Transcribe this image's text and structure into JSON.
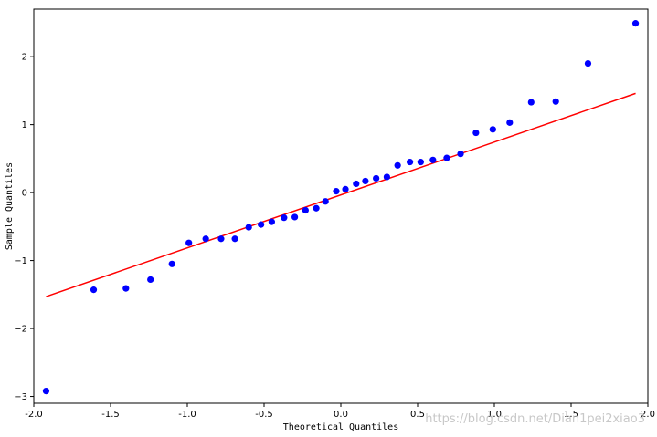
{
  "chart_data": {
    "type": "scatter",
    "title": "",
    "xlabel": "Theoretical Quantiles",
    "ylabel": "Sample Quantiles",
    "xlim": [
      -2.0,
      2.0
    ],
    "ylim": [
      -3.1,
      2.7
    ],
    "grid": false,
    "xticks": [
      -2.0,
      -1.5,
      -1.0,
      -0.5,
      0.0,
      0.5,
      1.0,
      1.5,
      2.0
    ],
    "xtick_labels": [
      "-2.0",
      "-1.5",
      "-1.0",
      "-0.5",
      "0.0",
      "0.5",
      "1.0",
      "1.5",
      "2.0"
    ],
    "yticks": [
      -3,
      -2,
      -1,
      0,
      1,
      2
    ],
    "ytick_labels": [
      "−3",
      "−2",
      "−1",
      "0",
      "1",
      "2"
    ],
    "points": {
      "color": "#0000ff",
      "x": [
        -1.92,
        -1.61,
        -1.4,
        -1.24,
        -1.1,
        -0.99,
        -0.88,
        -0.78,
        -0.69,
        -0.6,
        -0.52,
        -0.45,
        -0.37,
        -0.3,
        -0.23,
        -0.16,
        -0.1,
        -0.03,
        0.03,
        0.1,
        0.16,
        0.23,
        0.3,
        0.37,
        0.45,
        0.52,
        0.6,
        0.69,
        0.78,
        0.88,
        0.99,
        1.1,
        1.24,
        1.4,
        1.61,
        1.92
      ],
      "y": [
        -2.92,
        -1.43,
        -1.41,
        -1.28,
        -1.05,
        -0.74,
        -0.68,
        -0.68,
        -0.68,
        -0.51,
        -0.47,
        -0.43,
        -0.37,
        -0.36,
        -0.26,
        -0.23,
        -0.13,
        0.02,
        0.05,
        0.13,
        0.17,
        0.21,
        0.23,
        0.4,
        0.45,
        0.45,
        0.48,
        0.51,
        0.57,
        0.88,
        0.93,
        1.03,
        1.33,
        1.34,
        1.9,
        2.49
      ]
    },
    "reference_line": {
      "color": "#ff0000",
      "x": [
        -1.92,
        1.92
      ],
      "y": [
        -1.53,
        1.46
      ]
    }
  },
  "watermark": "https://blog.csdn.net/Dian1pei2xiao3"
}
